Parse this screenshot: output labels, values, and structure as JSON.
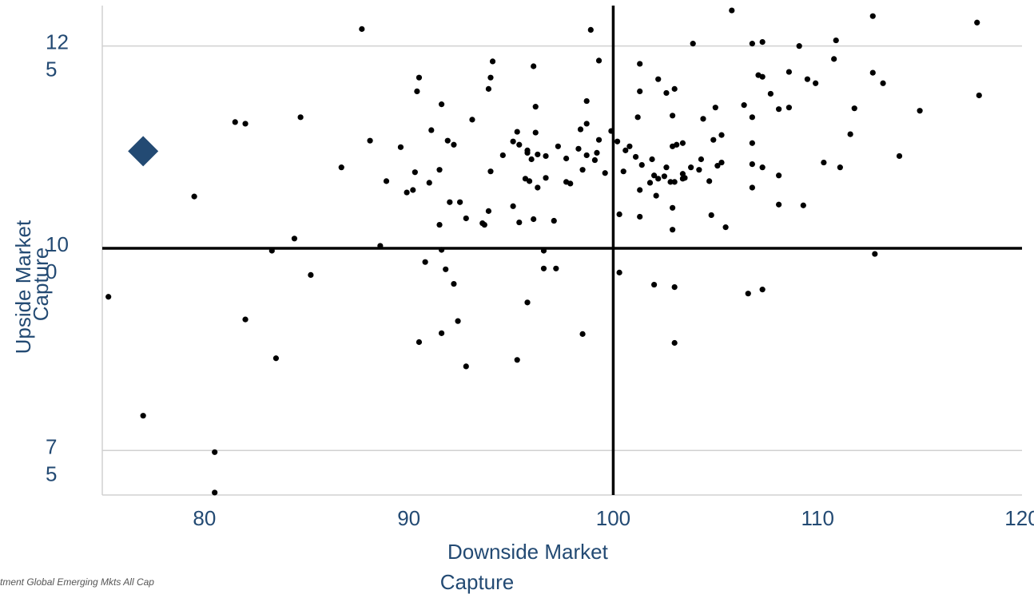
{
  "chart_data": {
    "type": "scatter",
    "xlabel_lines": [
      "Downside Market",
      "Capture"
    ],
    "ylabel_lines": [
      "Upside Market",
      "Capture"
    ],
    "xlim": [
      75,
      120
    ],
    "ylim": [
      69.5,
      130
    ],
    "x_ticks": [
      80,
      90,
      100,
      110,
      120
    ],
    "y_ticks": [
      {
        "value": 125,
        "lines": [
          "12",
          "5"
        ]
      },
      {
        "value": 100,
        "lines": [
          "10",
          "0"
        ]
      },
      {
        "value": 75,
        "lines": [
          "7",
          "5"
        ]
      }
    ],
    "reference_lines": {
      "x": 100,
      "y": 100
    },
    "gridlines": "horizontal",
    "highlight": {
      "x": 77,
      "y": 112,
      "color": "#234a73",
      "marker": "diamond"
    },
    "footnote": "tment Global Emerging Mkts All Cap",
    "colors": {
      "points": "#000000",
      "ticks": "#234a73",
      "grid": "#d0d0d0",
      "reference": "#000000"
    },
    "points": [
      [
        87.7,
        127.1
      ],
      [
        105.8,
        129.4
      ],
      [
        112.7,
        128.7
      ],
      [
        117.8,
        127.9
      ],
      [
        98.9,
        127.0
      ],
      [
        107.3,
        125.5
      ],
      [
        110.9,
        125.7
      ],
      [
        106.8,
        125.3
      ],
      [
        103.9,
        125.3
      ],
      [
        109.1,
        125.0
      ],
      [
        94.1,
        123.1
      ],
      [
        99.3,
        123.2
      ],
      [
        96.1,
        122.5
      ],
      [
        110.8,
        123.4
      ],
      [
        101.3,
        122.8
      ],
      [
        108.6,
        121.8
      ],
      [
        112.7,
        121.7
      ],
      [
        107.1,
        121.4
      ],
      [
        107.3,
        121.2
      ],
      [
        109.5,
        120.9
      ],
      [
        113.2,
        120.4
      ],
      [
        109.9,
        120.4
      ],
      [
        90.5,
        121.1
      ],
      [
        94.0,
        121.1
      ],
      [
        102.2,
        120.9
      ],
      [
        93.9,
        119.7
      ],
      [
        90.4,
        119.4
      ],
      [
        101.3,
        119.4
      ],
      [
        102.6,
        119.2
      ],
      [
        103.0,
        119.7
      ],
      [
        107.7,
        119.1
      ],
      [
        117.9,
        118.9
      ],
      [
        98.7,
        118.2
      ],
      [
        91.6,
        117.8
      ],
      [
        96.2,
        117.5
      ],
      [
        106.4,
        117.7
      ],
      [
        105.0,
        117.4
      ],
      [
        108.6,
        117.4
      ],
      [
        108.1,
        117.2
      ],
      [
        111.8,
        117.3
      ],
      [
        115.0,
        117.0
      ],
      [
        93.1,
        115.9
      ],
      [
        84.7,
        116.2
      ],
      [
        101.2,
        116.2
      ],
      [
        102.9,
        116.4
      ],
      [
        104.4,
        116.0
      ],
      [
        106.8,
        116.2
      ],
      [
        81.5,
        115.6
      ],
      [
        82.0,
        115.4
      ],
      [
        98.7,
        115.4
      ],
      [
        95.3,
        114.4
      ],
      [
        96.2,
        114.3
      ],
      [
        91.1,
        114.6
      ],
      [
        98.4,
        114.7
      ],
      [
        99.9,
        114.5
      ],
      [
        105.3,
        114.0
      ],
      [
        88.1,
        113.3
      ],
      [
        91.9,
        113.3
      ],
      [
        92.2,
        112.8
      ],
      [
        95.1,
        113.2
      ],
      [
        95.4,
        112.8
      ],
      [
        97.3,
        112.6
      ],
      [
        99.3,
        113.4
      ],
      [
        100.2,
        113.2
      ],
      [
        100.8,
        112.6
      ],
      [
        103.1,
        112.8
      ],
      [
        103.4,
        113.0
      ],
      [
        104.9,
        113.4
      ],
      [
        106.8,
        113.0
      ],
      [
        111.6,
        114.1
      ],
      [
        89.6,
        112.5
      ],
      [
        94.6,
        111.5
      ],
      [
        95.8,
        112.1
      ],
      [
        96.0,
        111.0
      ],
      [
        95.8,
        111.8
      ],
      [
        96.3,
        111.6
      ],
      [
        96.7,
        111.4
      ],
      [
        97.7,
        111.1
      ],
      [
        98.3,
        112.3
      ],
      [
        98.7,
        111.5
      ],
      [
        99.2,
        111.8
      ],
      [
        99.1,
        110.9
      ],
      [
        100.6,
        112.1
      ],
      [
        101.1,
        111.3
      ],
      [
        101.9,
        111.0
      ],
      [
        102.9,
        112.6
      ],
      [
        104.3,
        111.0
      ],
      [
        105.3,
        110.6
      ],
      [
        110.3,
        110.6
      ],
      [
        114.0,
        111.4
      ],
      [
        86.7,
        110.0
      ],
      [
        90.3,
        109.4
      ],
      [
        91.5,
        109.7
      ],
      [
        94.0,
        109.5
      ],
      [
        96.7,
        108.7
      ],
      [
        97.7,
        108.2
      ],
      [
        98.5,
        109.7
      ],
      [
        99.6,
        109.3
      ],
      [
        100.5,
        109.5
      ],
      [
        101.4,
        110.3
      ],
      [
        102.0,
        109.0
      ],
      [
        102.6,
        110.0
      ],
      [
        103.4,
        109.2
      ],
      [
        103.5,
        108.7
      ],
      [
        103.8,
        110.0
      ],
      [
        104.2,
        109.7
      ],
      [
        104.7,
        108.3
      ],
      [
        105.1,
        110.2
      ],
      [
        106.8,
        110.4
      ],
      [
        107.3,
        110.0
      ],
      [
        108.1,
        109.0
      ],
      [
        111.1,
        110.0
      ],
      [
        88.9,
        108.3
      ],
      [
        90.2,
        107.2
      ],
      [
        91.0,
        108.1
      ],
      [
        95.9,
        108.3
      ],
      [
        95.7,
        108.6
      ],
      [
        96.3,
        107.5
      ],
      [
        97.9,
        108.0
      ],
      [
        101.8,
        108.1
      ],
      [
        102.2,
        108.6
      ],
      [
        102.5,
        108.9
      ],
      [
        102.8,
        108.2
      ],
      [
        103.0,
        108.2
      ],
      [
        101.3,
        107.2
      ],
      [
        102.1,
        106.5
      ],
      [
        103.4,
        108.6
      ],
      [
        106.8,
        107.5
      ],
      [
        79.5,
        106.4
      ],
      [
        92.0,
        105.7
      ],
      [
        92.5,
        105.7
      ],
      [
        95.1,
        105.2
      ],
      [
        89.9,
        106.9
      ],
      [
        93.9,
        104.6
      ],
      [
        100.3,
        104.2
      ],
      [
        101.3,
        103.9
      ],
      [
        102.9,
        105.0
      ],
      [
        104.8,
        104.1
      ],
      [
        108.1,
        105.4
      ],
      [
        109.3,
        105.3
      ],
      [
        92.8,
        103.7
      ],
      [
        93.6,
        103.1
      ],
      [
        93.7,
        102.9
      ],
      [
        95.4,
        103.2
      ],
      [
        96.1,
        103.6
      ],
      [
        97.1,
        103.4
      ],
      [
        102.9,
        102.3
      ],
      [
        105.5,
        102.6
      ],
      [
        91.5,
        102.9
      ],
      [
        84.4,
        101.2
      ],
      [
        88.6,
        100.3
      ],
      [
        83.3,
        99.7
      ],
      [
        91.6,
        99.8
      ],
      [
        96.6,
        99.7
      ],
      [
        90.8,
        98.3
      ],
      [
        91.8,
        97.4
      ],
      [
        96.6,
        97.5
      ],
      [
        97.2,
        97.5
      ],
      [
        100.3,
        97.0
      ],
      [
        85.2,
        96.7
      ],
      [
        92.2,
        95.6
      ],
      [
        102.0,
        95.5
      ],
      [
        103.0,
        95.2
      ],
      [
        106.6,
        94.4
      ],
      [
        107.3,
        94.9
      ],
      [
        75.3,
        94.0
      ],
      [
        95.8,
        93.3
      ],
      [
        112.8,
        99.3
      ],
      [
        82.0,
        91.2
      ],
      [
        92.4,
        91.0
      ],
      [
        91.6,
        89.5
      ],
      [
        98.5,
        89.4
      ],
      [
        90.5,
        88.4
      ],
      [
        103.0,
        88.3
      ],
      [
        83.5,
        86.4
      ],
      [
        95.3,
        86.2
      ],
      [
        92.8,
        85.4
      ],
      [
        77.0,
        79.3
      ],
      [
        80.5,
        74.8
      ],
      [
        80.5,
        69.8
      ]
    ]
  }
}
